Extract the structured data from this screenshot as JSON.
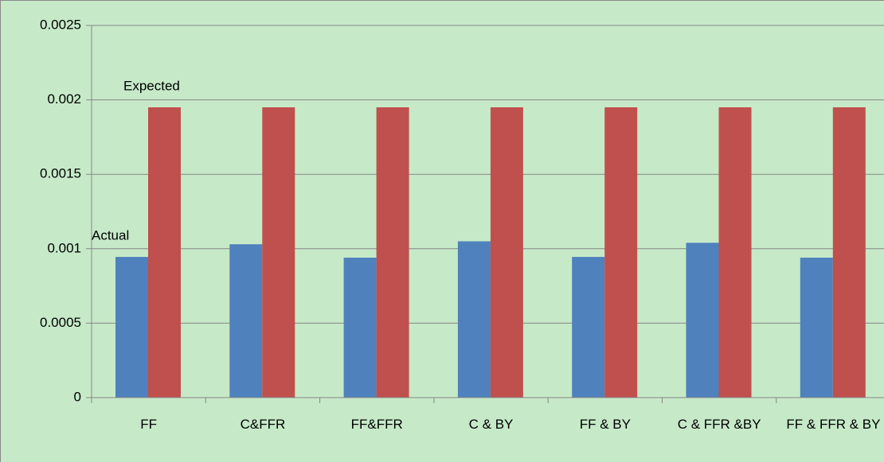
{
  "chart_data": {
    "type": "bar",
    "categories": [
      "FF",
      "C&FFR",
      "FF&FFR",
      "C & BY",
      "FF & BY",
      "C & FFR &BY",
      "FF & FFR & BY"
    ],
    "series": [
      {
        "name": "Actual",
        "color": "#4f81bd",
        "values": [
          0.000945,
          0.00103,
          0.00094,
          0.00105,
          0.000945,
          0.00104,
          0.00094
        ]
      },
      {
        "name": "Expected",
        "color": "#c0504d",
        "values": [
          0.00195,
          0.00195,
          0.00195,
          0.00195,
          0.00195,
          0.00195,
          0.00195
        ]
      }
    ],
    "ylim": [
      0,
      0.0025
    ],
    "yticks": [
      0,
      0.0005,
      0.001,
      0.0015,
      0.002,
      0.0025
    ],
    "grid": true
  }
}
